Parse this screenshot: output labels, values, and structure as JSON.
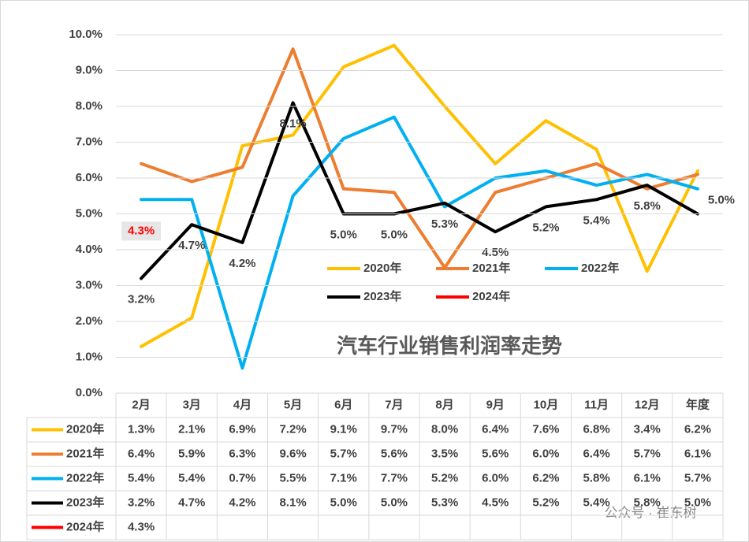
{
  "chart_data": {
    "type": "line",
    "title": "汽车行业销售利润率走势",
    "categories": [
      "2月",
      "3月",
      "4月",
      "5月",
      "6月",
      "7月",
      "8月",
      "9月",
      "10月",
      "11月",
      "12月",
      "年度"
    ],
    "ylim": [
      0,
      10
    ],
    "yticks": [
      {
        "value": 0,
        "label": "0.0%"
      },
      {
        "value": 1,
        "label": "1.0%"
      },
      {
        "value": 2,
        "label": "2.0%"
      },
      {
        "value": 3,
        "label": "3.0%"
      },
      {
        "value": 4,
        "label": "4.0%"
      },
      {
        "value": 5,
        "label": "5.0%"
      },
      {
        "value": 6,
        "label": "6.0%"
      },
      {
        "value": 7,
        "label": "7.0%"
      },
      {
        "value": 8,
        "label": "8.0%"
      },
      {
        "value": 9,
        "label": "9.0%"
      },
      {
        "value": 10,
        "label": "10.0%"
      }
    ],
    "grid": true,
    "series": [
      {
        "name": "2020年",
        "color": "#ffc000",
        "values": [
          1.3,
          2.1,
          6.9,
          7.2,
          9.1,
          9.7,
          8.0,
          6.4,
          7.6,
          6.8,
          3.4,
          6.2
        ],
        "value_labels": [
          "1.3%",
          "2.1%",
          "6.9%",
          "7.2%",
          "9.1%",
          "9.7%",
          "8.0%",
          "6.4%",
          "7.6%",
          "6.8%",
          "3.4%",
          "6.2%"
        ]
      },
      {
        "name": "2021年",
        "color": "#ed7d31",
        "values": [
          6.4,
          5.9,
          6.3,
          9.6,
          5.7,
          5.6,
          3.5,
          5.6,
          6.0,
          6.4,
          5.7,
          6.1
        ],
        "value_labels": [
          "6.4%",
          "5.9%",
          "6.3%",
          "9.6%",
          "5.7%",
          "5.6%",
          "3.5%",
          "5.6%",
          "6.0%",
          "6.4%",
          "5.7%",
          "6.1%"
        ]
      },
      {
        "name": "2022年",
        "color": "#00b0f0",
        "values": [
          5.4,
          5.4,
          0.7,
          5.5,
          7.1,
          7.7,
          5.2,
          6.0,
          6.2,
          5.8,
          6.1,
          5.7
        ],
        "value_labels": [
          "5.4%",
          "5.4%",
          "0.7%",
          "5.5%",
          "7.1%",
          "7.7%",
          "5.2%",
          "6.0%",
          "6.2%",
          "5.8%",
          "6.1%",
          "5.7%"
        ]
      },
      {
        "name": "2023年",
        "color": "#000000",
        "values": [
          3.2,
          4.7,
          4.2,
          8.1,
          5.0,
          5.0,
          5.3,
          4.5,
          5.2,
          5.4,
          5.8,
          5.0
        ],
        "value_labels": [
          "3.2%",
          "4.7%",
          "4.2%",
          "8.1%",
          "5.0%",
          "5.0%",
          "5.3%",
          "4.5%",
          "5.2%",
          "5.4%",
          "5.8%",
          "5.0%"
        ]
      },
      {
        "name": "2024年",
        "color": "#ff0000",
        "values": [
          4.3,
          null,
          null,
          null,
          null,
          null,
          null,
          null,
          null,
          null,
          null,
          null
        ],
        "value_labels": [
          "4.3%",
          null,
          null,
          null,
          null,
          null,
          null,
          null,
          null,
          null,
          null,
          null
        ]
      }
    ],
    "watermark": "公众号 · 崔东树"
  }
}
